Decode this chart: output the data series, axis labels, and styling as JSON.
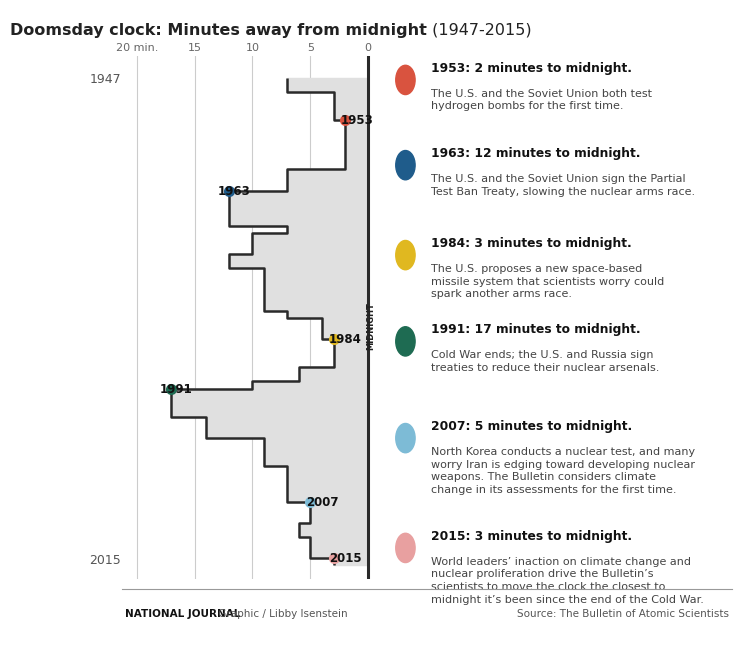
{
  "title_bold": "Doomsday clock: Minutes away from midnight",
  "title_normal": " (1947-2015)",
  "background_color": "#ffffff",
  "chart_bg_color": "#e0e0e0",
  "years": [
    1947,
    1949,
    1953,
    1960,
    1963,
    1968,
    1969,
    1972,
    1974,
    1980,
    1981,
    1984,
    1988,
    1990,
    1991,
    1995,
    1998,
    2002,
    2007,
    2010,
    2012,
    2015
  ],
  "minutes": [
    7,
    3,
    2,
    7,
    12,
    7,
    10,
    12,
    9,
    7,
    4,
    3,
    6,
    10,
    17,
    14,
    9,
    7,
    5,
    6,
    5,
    3
  ],
  "highlighted_points": [
    {
      "year": 1953,
      "minutes": 2,
      "color": "#d9533f",
      "label_side": "right"
    },
    {
      "year": 1963,
      "minutes": 12,
      "color": "#1f5c8b",
      "label_side": "left"
    },
    {
      "year": 1984,
      "minutes": 3,
      "color": "#e0b820",
      "label_side": "right"
    },
    {
      "year": 1991,
      "minutes": 17,
      "color": "#1e6b52",
      "label_side": "left"
    },
    {
      "year": 2007,
      "minutes": 5,
      "color": "#7dbbd6",
      "label_side": "right"
    },
    {
      "year": 2015,
      "minutes": 3,
      "color": "#e8a0a0",
      "label_side": "right"
    }
  ],
  "annotations": [
    {
      "color": "#d9533f",
      "title": "1953: 2 minutes to midnight.",
      "text": "The U.S. and the Soviet Union both test\nhydrogen bombs for the first time."
    },
    {
      "color": "#1f5c8b",
      "title": "1963: 12 minutes to midnight.",
      "text": "The U.S. and the Soviet Union sign the Partial\nTest Ban Treaty, slowing the nuclear arms race."
    },
    {
      "color": "#e0b820",
      "title": "1984: 3 minutes to midnight.",
      "text": "The U.S. proposes a new space-based\nmissile system that scientists worry could\nspark another arms race."
    },
    {
      "color": "#1e6b52",
      "title": "1991: 17 minutes to midnight.",
      "text": "Cold War ends; the U.S. and Russia sign\ntreaties to reduce their nuclear arsenals."
    },
    {
      "color": "#7dbbd6",
      "title": "2007: 5 minutes to midnight.",
      "text": "North Korea conducts a nuclear test, and many\nworry Iran is edging toward developing nuclear\nweapons. The Bulletin considers climate\nchange in its assessments for the first time."
    },
    {
      "color": "#e8a0a0",
      "title": "2015: 3 minutes to midnight.",
      "text": "World leaders’ inaction on climate change and\nnuclear proliferation drive the Bulletin’s\nscientists to move the clock the closest to\nmidnight it’s been since the end of the Cold War."
    }
  ],
  "footer_left_bold": "NATIONAL JOURNAL",
  "footer_left_normal": " Graphic / Libby Isenstein",
  "footer_right": "Source: The Bulletin of Atomic Scientists"
}
